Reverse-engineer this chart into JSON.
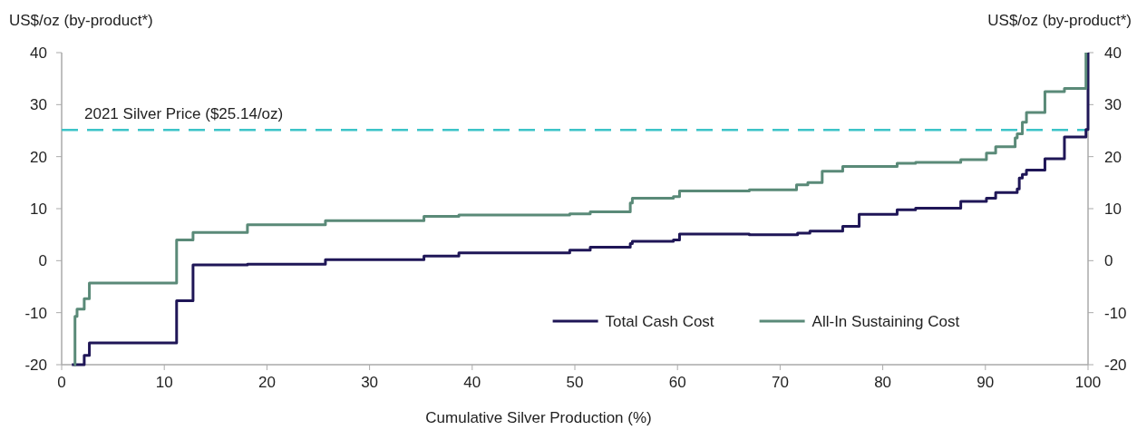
{
  "chart_data": {
    "type": "step",
    "xlabel": "Cumulative Silver Production (%)",
    "ylabel": "US$/oz (by-product*)",
    "y2label": "US$/oz (by-product*)",
    "xlim": [
      0,
      100
    ],
    "xticks": [
      0,
      10,
      20,
      30,
      40,
      50,
      60,
      70,
      80,
      90,
      100
    ],
    "ylim": [
      -20,
      40
    ],
    "yticks": [
      -20,
      -10,
      0,
      10,
      20,
      30,
      40
    ],
    "y2lim": [
      -20,
      40
    ],
    "y2ticks": [
      -20,
      -10,
      0,
      10,
      20,
      30,
      40
    ],
    "grid": false,
    "legend": "bottom right",
    "line_style": "solid",
    "marker": "none",
    "ref_lines": [
      {
        "axis": "y",
        "value": 25.14,
        "label": "2021 Silver Price ($25.14/oz)",
        "color": "#3cc4c8",
        "line_style": "dashed"
      }
    ],
    "series": [
      {
        "name": "Total Cash Cost",
        "color": "#1f1657",
        "x": [
          1.0,
          2.2,
          2.7,
          11.2,
          12.8,
          18.1,
          25.7,
          35.3,
          38.7,
          49.5,
          51.5,
          55.4,
          55.6,
          59.6,
          60.2,
          67.0,
          71.7,
          72.9,
          76.1,
          77.7,
          81.4,
          83.2,
          87.6,
          90.1,
          91.0,
          93.1,
          93.3,
          93.6,
          94.0,
          95.8,
          97.7,
          99.8,
          100
        ],
        "values": [
          -20,
          -18.2,
          -15.8,
          -7.7,
          -0.8,
          -0.7,
          0.2,
          0.9,
          1.5,
          2.0,
          2.6,
          3.3,
          3.7,
          4.0,
          5.1,
          5.0,
          5.3,
          5.7,
          6.6,
          8.9,
          9.8,
          10.1,
          11.4,
          12.0,
          13.1,
          13.8,
          15.9,
          16.6,
          17.4,
          19.6,
          23.8,
          25.2,
          40
        ]
      },
      {
        "name": "All-In Sustaining Cost",
        "color": "#5a8a78",
        "x": [
          1.2,
          1.3,
          1.5,
          2.2,
          2.7,
          11.2,
          12.8,
          18.1,
          25.7,
          35.3,
          38.7,
          49.5,
          51.5,
          55.4,
          55.6,
          59.6,
          60.2,
          67.0,
          71.6,
          72.7,
          74.1,
          76.1,
          81.4,
          83.2,
          87.6,
          90.1,
          91.0,
          92.9,
          93.1,
          93.6,
          94.0,
          95.8,
          97.7,
          99.8
        ],
        "values": [
          -20,
          -10.7,
          -9.3,
          -7.3,
          -4.3,
          4.0,
          5.4,
          6.9,
          7.7,
          8.5,
          8.8,
          9.0,
          9.4,
          11.1,
          12.0,
          12.3,
          13.4,
          13.6,
          14.6,
          15.0,
          17.2,
          18.1,
          18.7,
          18.9,
          19.4,
          20.7,
          21.9,
          23.6,
          24.4,
          26.6,
          28.5,
          32.5,
          33.1,
          40
        ]
      }
    ]
  }
}
